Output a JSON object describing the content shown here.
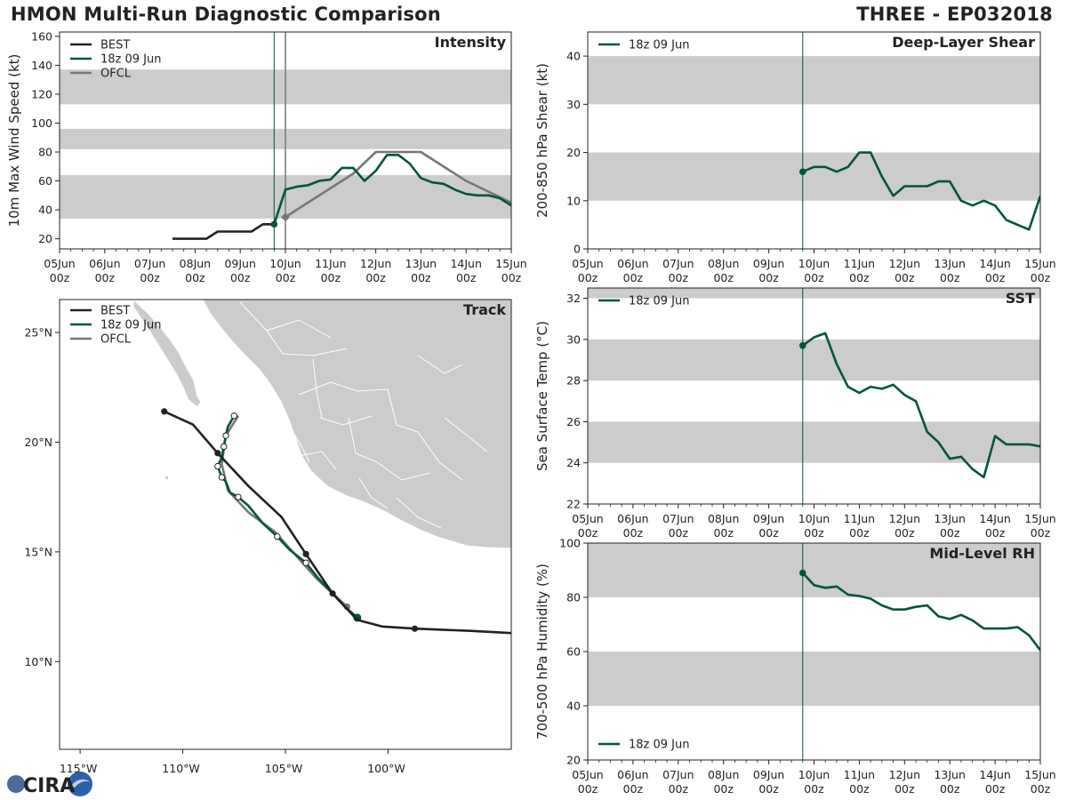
{
  "header": {
    "left_title": "HMON Multi-Run Diagnostic Comparison",
    "right_title": "THREE - EP032018"
  },
  "logo": {
    "text": "CIRA"
  },
  "colors": {
    "best": "#222222",
    "run": "#00553a",
    "ofcl": "#777777",
    "band": "#cccccc",
    "land": "#cccccc"
  },
  "time_ticks": {
    "labels": [
      "05Jun",
      "06Jun",
      "07Jun",
      "08Jun",
      "09Jun",
      "10Jun",
      "11Jun",
      "12Jun",
      "13Jun",
      "14Jun",
      "15Jun"
    ],
    "sublabel": "00z"
  },
  "chart_data": [
    {
      "id": "intensity",
      "type": "line",
      "title": "Intensity",
      "ylabel": "10m Max Wind Speed (kt)",
      "ylim": [
        13,
        163
      ],
      "yticks": [
        20,
        40,
        60,
        80,
        100,
        120,
        140,
        160
      ],
      "x_units": "days since 05Jun 00z",
      "xlim": [
        0,
        10
      ],
      "bands": [
        [
          34,
          64
        ],
        [
          82,
          96
        ],
        [
          113,
          137
        ]
      ],
      "init_line": 4.75,
      "ofcl_line": 5.0,
      "legend": [
        "BEST",
        "18z 09 Jun",
        "OFCL"
      ],
      "series": [
        {
          "name": "BEST",
          "x": [
            2.5,
            3.25,
            3.5,
            3.75,
            4.0,
            4.25,
            4.5,
            4.75
          ],
          "y": [
            20,
            20,
            25,
            25,
            25,
            25,
            30,
            30
          ]
        },
        {
          "name": "18z 09 Jun",
          "x": [
            4.75,
            5.0,
            5.25,
            5.5,
            5.75,
            6.0,
            6.25,
            6.5,
            6.75,
            7.0,
            7.25,
            7.5,
            7.75,
            8.0,
            8.25,
            8.5,
            8.75,
            9.0,
            9.25,
            9.5,
            9.75,
            10.0
          ],
          "y": [
            30,
            54,
            56,
            57,
            60,
            61,
            69,
            69,
            60,
            67,
            78,
            78,
            72,
            62,
            59,
            58,
            54,
            51,
            50,
            50,
            48,
            43
          ]
        },
        {
          "name": "OFCL",
          "x": [
            5.0,
            5.5,
            6.0,
            6.5,
            7.0,
            8.0,
            9.0,
            10.0
          ],
          "y": [
            35,
            45,
            55,
            65,
            80,
            80,
            60,
            45
          ]
        }
      ]
    },
    {
      "id": "shear",
      "type": "line",
      "title": "Deep-Layer Shear",
      "ylabel": "200-850 hPa Shear (kt)",
      "ylim": [
        0,
        45
      ],
      "yticks": [
        0,
        10,
        20,
        30,
        40
      ],
      "x_units": "days since 05Jun 00z",
      "xlim": [
        0,
        10
      ],
      "bands": [
        [
          10,
          20
        ],
        [
          30,
          40
        ]
      ],
      "init_line": 4.75,
      "legend": [
        "18z 09 Jun"
      ],
      "series": [
        {
          "name": "18z 09 Jun",
          "x": [
            4.75,
            5.0,
            5.25,
            5.5,
            5.75,
            6.0,
            6.25,
            6.5,
            6.75,
            7.0,
            7.25,
            7.5,
            7.75,
            8.0,
            8.25,
            8.5,
            8.75,
            9.0,
            9.25,
            9.5,
            9.75,
            10.0
          ],
          "y": [
            16,
            17,
            17,
            16,
            17,
            20,
            20,
            15,
            11,
            13,
            13,
            13,
            14,
            14,
            10,
            9,
            10,
            9,
            6,
            5,
            4,
            11
          ]
        }
      ]
    },
    {
      "id": "sst",
      "type": "line",
      "title": "SST",
      "ylabel": "Sea Surface Temp (°C)",
      "ylim": [
        22,
        32.5
      ],
      "yticks": [
        22,
        24,
        26,
        28,
        30,
        32
      ],
      "x_units": "days since 05Jun 00z",
      "xlim": [
        0,
        10
      ],
      "bands": [
        [
          24,
          26
        ],
        [
          28,
          30
        ],
        [
          32,
          34
        ]
      ],
      "init_line": 4.75,
      "legend": [
        "18z 09 Jun"
      ],
      "series": [
        {
          "name": "18z 09 Jun",
          "x": [
            4.75,
            5.0,
            5.25,
            5.5,
            5.75,
            6.0,
            6.25,
            6.5,
            6.75,
            7.0,
            7.25,
            7.5,
            7.75,
            8.0,
            8.25,
            8.5,
            8.75,
            9.0,
            9.25,
            9.5,
            9.75,
            10.0
          ],
          "y": [
            29.7,
            30.1,
            30.3,
            28.8,
            27.7,
            27.4,
            27.7,
            27.6,
            27.8,
            27.3,
            27.0,
            25.5,
            25.0,
            24.2,
            24.3,
            23.7,
            23.3,
            25.3,
            24.9,
            24.9,
            24.9,
            24.8
          ]
        }
      ]
    },
    {
      "id": "rh",
      "type": "line",
      "title": "Mid-Level RH",
      "ylabel": "700-500 hPa Humidity (%)",
      "ylim": [
        20,
        100
      ],
      "yticks": [
        20,
        40,
        60,
        80,
        100
      ],
      "x_units": "days since 05Jun 00z",
      "xlim": [
        0,
        10
      ],
      "bands": [
        [
          40,
          60
        ],
        [
          80,
          100
        ]
      ],
      "init_line": 4.75,
      "legend": [
        "18z 09 Jun"
      ],
      "series": [
        {
          "name": "18z 09 Jun",
          "x": [
            4.75,
            5.0,
            5.25,
            5.5,
            5.75,
            6.0,
            6.25,
            6.5,
            6.75,
            7.0,
            7.25,
            7.5,
            7.75,
            8.0,
            8.25,
            8.5,
            8.75,
            9.0,
            9.25,
            9.5,
            9.75,
            10.0
          ],
          "y": [
            89,
            84.5,
            83.5,
            84,
            81,
            80.5,
            79.5,
            77,
            75.5,
            75.5,
            76.5,
            77,
            73,
            72,
            73.5,
            71.5,
            68.5,
            68.5,
            68.5,
            69,
            66,
            60.5
          ]
        }
      ]
    },
    {
      "id": "track",
      "type": "scatter",
      "title": "Track",
      "xlim": [
        -116,
        -94
      ],
      "ylim": [
        6,
        26.5
      ],
      "xticks": [
        -115,
        -110,
        -105,
        -100
      ],
      "xticklabels": [
        "115°W",
        "110°W",
        "105°W",
        "100°W"
      ],
      "yticks": [
        10,
        15,
        20,
        25
      ],
      "yticklabels": [
        "10°N",
        "15°N",
        "20°N",
        "25°N"
      ],
      "legend": [
        "BEST",
        "18z 09 Jun",
        "OFCL"
      ],
      "series": [
        {
          "name": "BEST",
          "lon": [
            -94.0,
            -96.0,
            -98.7,
            -100.3,
            -101.5,
            -102.7,
            -104.0,
            -105.2,
            -106.8,
            -108.3,
            -109.5,
            -110.9
          ],
          "lat": [
            11.3,
            11.4,
            11.5,
            11.6,
            11.9,
            13.1,
            14.9,
            16.6,
            18.0,
            19.5,
            20.8,
            21.4
          ],
          "markers": [
            false,
            false,
            true,
            false,
            false,
            true,
            true,
            false,
            false,
            true,
            false,
            true
          ]
        },
        {
          "name": "18z 09 Jun",
          "lon": [
            -101.5,
            -102.1,
            -102.8,
            -103.4,
            -104.0,
            -104.8,
            -105.4,
            -106.1,
            -106.8,
            -107.3,
            -107.7,
            -107.9,
            -108.1,
            -108.3,
            -108.1,
            -108.0,
            -107.9,
            -107.8,
            -107.5
          ],
          "lat": [
            12.0,
            12.5,
            13.2,
            13.8,
            14.5,
            15.1,
            15.7,
            16.3,
            17.1,
            17.5,
            17.7,
            18.2,
            18.4,
            18.9,
            19.3,
            19.8,
            20.3,
            20.7,
            21.2
          ],
          "markers": [
            true,
            false,
            false,
            false,
            true,
            false,
            true,
            false,
            false,
            true,
            false,
            false,
            true,
            true,
            false,
            true,
            true,
            false,
            true
          ]
        },
        {
          "name": "OFCL",
          "lon": [
            -102.0,
            -103.5,
            -105.5,
            -106.8,
            -107.8,
            -108.1,
            -107.9,
            -107.3
          ],
          "lat": [
            12.5,
            13.8,
            15.9,
            16.8,
            17.8,
            19.0,
            20.3,
            21.2
          ],
          "markers": [
            true,
            false,
            false,
            false,
            false,
            false,
            false,
            false
          ]
        }
      ]
    }
  ]
}
